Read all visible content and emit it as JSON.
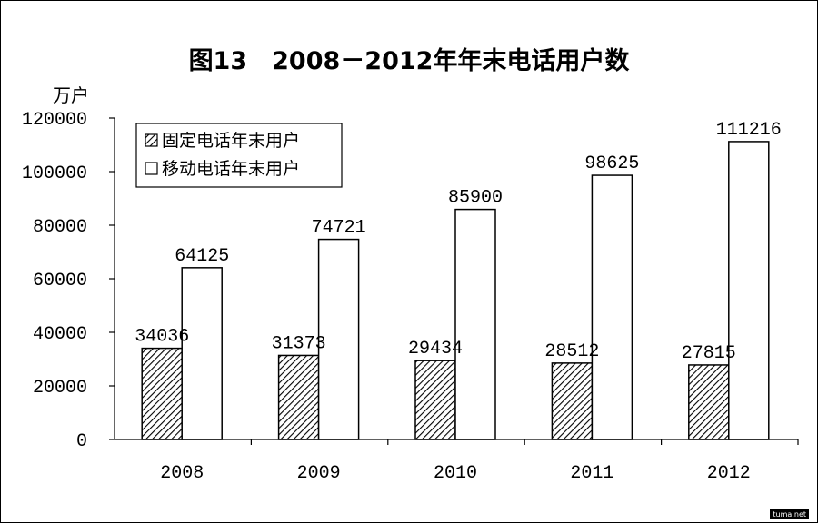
{
  "title": "图13　2008－2012年年末电话用户数",
  "unit_label": "万户",
  "watermark": "tuma.net",
  "chart_data": {
    "type": "bar",
    "title": "图13　2008－2012年年末电话用户数",
    "ylabel": "万户",
    "xlabel": "",
    "ylim": [
      0,
      120000
    ],
    "yticks": [
      0,
      20000,
      40000,
      60000,
      80000,
      100000,
      120000
    ],
    "categories": [
      "2008",
      "2009",
      "2010",
      "2011",
      "2012"
    ],
    "series": [
      {
        "name": "固定电话年末用户",
        "values": [
          34036,
          31373,
          29434,
          28512,
          27815
        ],
        "fill": "hatch"
      },
      {
        "name": "移动电话年末用户",
        "values": [
          64125,
          74721,
          85900,
          98625,
          111216
        ],
        "fill": "#ffffff"
      }
    ],
    "legend_position": "top-left",
    "grid": false
  }
}
